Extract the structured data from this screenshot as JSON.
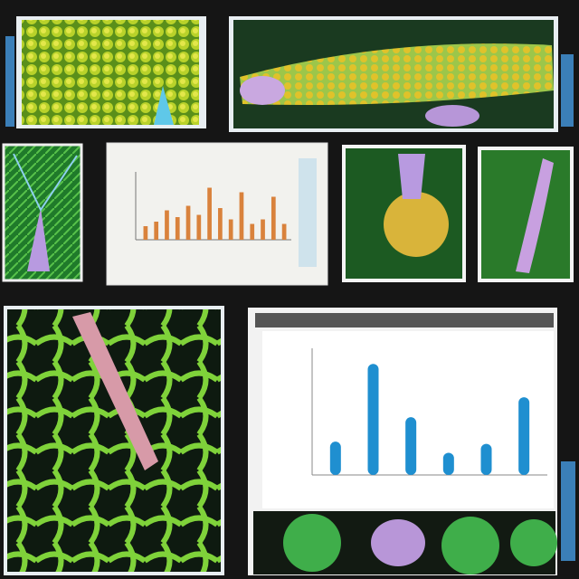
{
  "chart_data": [
    {
      "type": "bar",
      "color": "#d9823c",
      "ylim": [
        0,
        60
      ],
      "values": [
        12,
        16,
        26,
        20,
        30,
        22,
        46,
        28,
        18,
        42,
        14,
        18,
        38,
        14
      ]
    },
    {
      "type": "dot",
      "color": "#1f8fd0",
      "ylim": [
        0,
        110
      ],
      "values": [
        30,
        100,
        52,
        20,
        28,
        70
      ]
    }
  ]
}
